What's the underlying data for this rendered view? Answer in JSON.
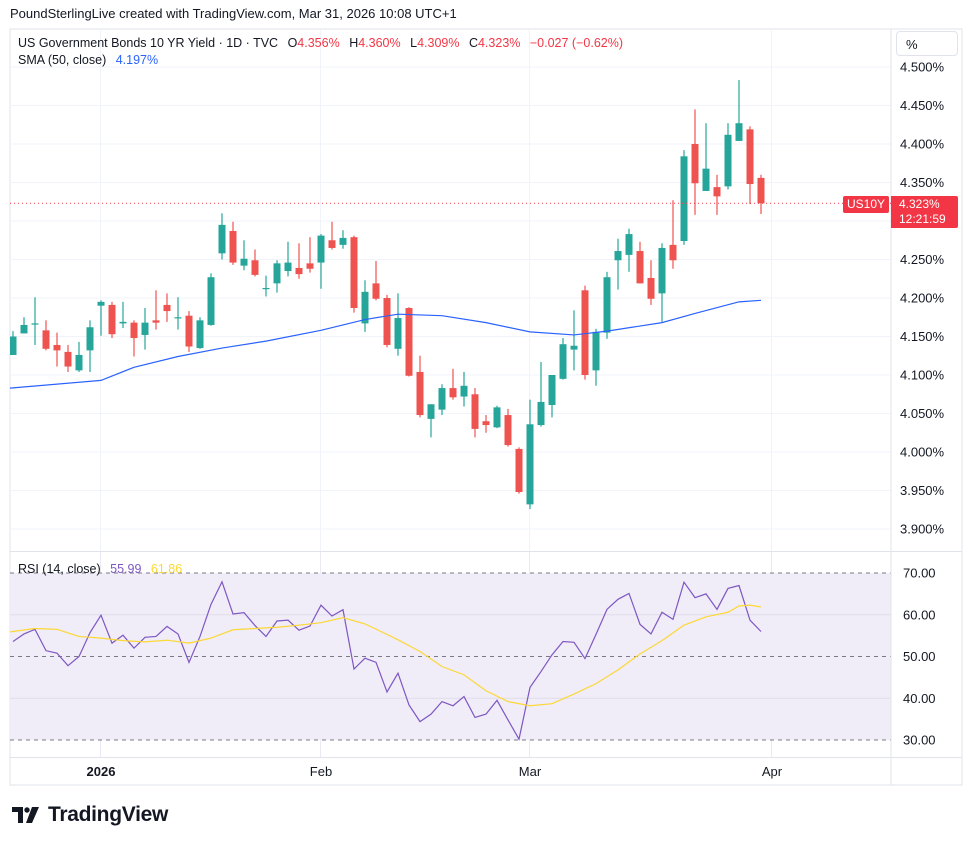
{
  "caption": "PoundSterlingLive created with TradingView.com, Mar 31, 2026 10:08 UTC+1",
  "legend": {
    "symbol_title": "US Government Bonds 10 YR Yield · 1D · TVC",
    "open_label": "O",
    "open": "4.356%",
    "high_label": "H",
    "high": "4.360%",
    "low_label": "L",
    "low": "4.309%",
    "close_label": "C",
    "close": "4.323%",
    "change": "−0.027 (−0.62%)",
    "sma_title": "SMA (50, close)",
    "sma_value": "4.197%",
    "rsi_title": "RSI (14, close)",
    "rsi_value": "55.99",
    "rsi_ma_value": "61.86"
  },
  "scale_button": "%",
  "last_price": {
    "symbol": "US10Y",
    "price": "4.323%",
    "countdown": "12:21:59"
  },
  "logo_text": "TradingView",
  "colors": {
    "up": "#26a69a",
    "down": "#ef5350",
    "sma": "#2962ff",
    "rsi": "#7e57c2",
    "rsi_ma": "#fdd835",
    "rsi_band": "#f0ecf8",
    "last_price": "#f23645"
  },
  "icons": {
    "logo": "tradingview-logo-icon"
  },
  "chart_data": [
    {
      "type": "candlestick",
      "title": "US Government Bonds 10 YR Yield · 1D · TVC",
      "ylim": [
        3.875,
        4.52
      ],
      "y_ticks": [
        "4.500%",
        "4.450%",
        "4.400%",
        "4.350%",
        "4.300%",
        "4.250%",
        "4.200%",
        "4.150%",
        "4.100%",
        "4.050%",
        "4.000%",
        "3.950%",
        "3.900%"
      ],
      "y_tick_values": [
        4.5,
        4.45,
        4.4,
        4.35,
        4.3,
        4.25,
        4.2,
        4.15,
        4.1,
        4.05,
        4.0,
        3.95,
        3.9
      ],
      "hidden_y_tick": 4.3,
      "x_ticks": [
        {
          "label": "2026",
          "index": 8
        },
        {
          "label": "Feb",
          "index": 28
        },
        {
          "label": "Mar",
          "index": 47
        },
        {
          "label": "Apr",
          "index": 69
        }
      ],
      "grid": true,
      "ohlc_columns": [
        "open",
        "high",
        "low",
        "close"
      ],
      "candles": [
        [
          4.126,
          4.157,
          4.126,
          4.15
        ],
        [
          4.154,
          4.175,
          4.154,
          4.165
        ],
        [
          4.166,
          4.201,
          4.139,
          4.167
        ],
        [
          4.158,
          4.171,
          4.132,
          4.134
        ],
        [
          4.139,
          4.155,
          4.111,
          4.132
        ],
        [
          4.13,
          4.139,
          4.104,
          4.111
        ],
        [
          4.106,
          4.143,
          4.104,
          4.126
        ],
        [
          4.132,
          4.171,
          4.104,
          4.162
        ],
        [
          4.19,
          4.197,
          4.151,
          4.195
        ],
        [
          4.191,
          4.195,
          4.148,
          4.153
        ],
        [
          4.167,
          4.195,
          4.161,
          4.169
        ],
        [
          4.168,
          4.171,
          4.124,
          4.148
        ],
        [
          4.152,
          4.187,
          4.133,
          4.168
        ],
        [
          4.171,
          4.21,
          4.159,
          4.168
        ],
        [
          4.191,
          4.206,
          4.169,
          4.183
        ],
        [
          4.174,
          4.201,
          4.159,
          4.175
        ],
        [
          4.177,
          4.183,
          4.13,
          4.137
        ],
        [
          4.135,
          4.175,
          4.134,
          4.171
        ],
        [
          4.165,
          4.232,
          4.164,
          4.227
        ],
        [
          4.258,
          4.31,
          4.25,
          4.295
        ],
        [
          4.287,
          4.299,
          4.243,
          4.246
        ],
        [
          4.242,
          4.275,
          4.236,
          4.251
        ],
        [
          4.249,
          4.263,
          4.228,
          4.23
        ],
        [
          4.212,
          4.229,
          4.202,
          4.213
        ],
        [
          4.219,
          4.249,
          4.207,
          4.245
        ],
        [
          4.235,
          4.273,
          4.228,
          4.246
        ],
        [
          4.239,
          4.271,
          4.225,
          4.231
        ],
        [
          4.245,
          4.279,
          4.233,
          4.238
        ],
        [
          4.246,
          4.283,
          4.212,
          4.281
        ],
        [
          4.275,
          4.299,
          4.263,
          4.265
        ],
        [
          4.269,
          4.288,
          4.264,
          4.278
        ],
        [
          4.279,
          4.281,
          4.181,
          4.187
        ],
        [
          4.167,
          4.223,
          4.156,
          4.208
        ],
        [
          4.219,
          4.248,
          4.197,
          4.199
        ],
        [
          4.2,
          4.204,
          4.136,
          4.139
        ],
        [
          4.134,
          4.206,
          4.125,
          4.174
        ],
        [
          4.187,
          4.188,
          4.098,
          4.099
        ],
        [
          4.104,
          4.125,
          4.045,
          4.048
        ],
        [
          4.043,
          4.062,
          4.019,
          4.062
        ],
        [
          4.055,
          4.088,
          4.048,
          4.083
        ],
        [
          4.083,
          4.108,
          4.068,
          4.071
        ],
        [
          4.072,
          4.104,
          4.059,
          4.086
        ],
        [
          4.075,
          4.083,
          4.019,
          4.03
        ],
        [
          4.04,
          4.048,
          4.025,
          4.035
        ],
        [
          4.032,
          4.06,
          4.031,
          4.058
        ],
        [
          4.048,
          4.056,
          4.007,
          4.009
        ],
        [
          4.004,
          4.006,
          3.946,
          3.948
        ],
        [
          3.932,
          4.068,
          3.926,
          4.036
        ],
        [
          4.035,
          4.117,
          4.033,
          4.065
        ],
        [
          4.061,
          4.1,
          4.045,
          4.1
        ],
        [
          4.095,
          4.148,
          4.094,
          4.14
        ],
        [
          4.133,
          4.184,
          4.106,
          4.138
        ],
        [
          4.21,
          4.216,
          4.094,
          4.1
        ],
        [
          4.106,
          4.16,
          4.086,
          4.156
        ],
        [
          4.155,
          4.234,
          4.147,
          4.227
        ],
        [
          4.249,
          4.277,
          4.211,
          4.261
        ],
        [
          4.256,
          4.29,
          4.234,
          4.283
        ],
        [
          4.261,
          4.273,
          4.219,
          4.219
        ],
        [
          4.226,
          4.249,
          4.191,
          4.199
        ],
        [
          4.206,
          4.271,
          4.169,
          4.265
        ],
        [
          4.269,
          4.327,
          4.238,
          4.249
        ],
        [
          4.274,
          4.392,
          4.269,
          4.384
        ],
        [
          4.4,
          4.445,
          4.308,
          4.349
        ],
        [
          4.339,
          4.427,
          4.339,
          4.368
        ],
        [
          4.344,
          4.36,
          4.308,
          4.332
        ],
        [
          4.345,
          4.427,
          4.341,
          4.412
        ],
        [
          4.404,
          4.483,
          4.404,
          4.427
        ],
        [
          4.419,
          4.423,
          4.322,
          4.348
        ],
        [
          4.356,
          4.36,
          4.309,
          4.323
        ]
      ],
      "sma_50": [
        [
          0,
          4.083
        ],
        [
          8,
          4.093
        ],
        [
          11,
          4.11
        ],
        [
          15,
          4.124
        ],
        [
          19,
          4.135
        ],
        [
          23,
          4.144
        ],
        [
          28,
          4.158
        ],
        [
          32,
          4.172
        ],
        [
          35,
          4.179
        ],
        [
          39,
          4.177
        ],
        [
          43,
          4.168
        ],
        [
          47,
          4.156
        ],
        [
          51,
          4.152
        ],
        [
          54,
          4.157
        ],
        [
          59,
          4.168
        ],
        [
          62,
          4.18
        ],
        [
          66,
          4.195
        ],
        [
          68,
          4.197
        ]
      ],
      "last_price": 4.323
    },
    {
      "type": "line",
      "title": "RSI (14, close)",
      "ylim": [
        27,
        74
      ],
      "y_ticks": [
        "70.00",
        "60.00",
        "50.00",
        "40.00",
        "30.00"
      ],
      "y_tick_values": [
        70,
        60,
        50,
        40,
        30
      ],
      "band": [
        30,
        70
      ],
      "dashed_levels": [
        70,
        50,
        30
      ],
      "series": [
        {
          "values": [
            53.6,
            55.4,
            56.5,
            51.4,
            50.8,
            47.8,
            50.0,
            55.7,
            59.9,
            53.2,
            55.1,
            52.0,
            54.6,
            54.8,
            57.2,
            55.4,
            48.6,
            54.8,
            62.5,
            67.9,
            60.2,
            60.5,
            57.4,
            54.8,
            58.5,
            58.7,
            56.3,
            57.3,
            62.3,
            59.7,
            61.2,
            47.0,
            49.6,
            48.6,
            41.5,
            46.0,
            38.4,
            34.4,
            36.2,
            39.2,
            38.2,
            40.4,
            35.4,
            36.2,
            39.5,
            34.8,
            30.2,
            42.6,
            46.4,
            50.4,
            53.6,
            53.4,
            49.5,
            55.3,
            61.3,
            63.7,
            65.1,
            57.7,
            55.4,
            60.6,
            58.9,
            67.8,
            64.1,
            65.0,
            61.3,
            66.3,
            67.0,
            58.7,
            55.99
          ]
        },
        {
          "points": [
            [
              0,
              55.9
            ],
            [
              2,
              56.7
            ],
            [
              4,
              56.5
            ],
            [
              6,
              54.8
            ],
            [
              8,
              54.4
            ],
            [
              10,
              53.8
            ],
            [
              12,
              53.5
            ],
            [
              14,
              53.9
            ],
            [
              16,
              53.2
            ],
            [
              18,
              54.4
            ],
            [
              20,
              56.4
            ],
            [
              22,
              56.7
            ],
            [
              24,
              57.0
            ],
            [
              26,
              57.5
            ],
            [
              28,
              58.1
            ],
            [
              30,
              59.3
            ],
            [
              32,
              57.8
            ],
            [
              34,
              55.3
            ],
            [
              35,
              54.0
            ],
            [
              37,
              51.2
            ],
            [
              39,
              47.6
            ],
            [
              41,
              45.6
            ],
            [
              43,
              41.8
            ],
            [
              45,
              39.2
            ],
            [
              47,
              38.2
            ],
            [
              49,
              38.7
            ],
            [
              51,
              41.0
            ],
            [
              53,
              43.5
            ],
            [
              55,
              46.8
            ],
            [
              57,
              50.6
            ],
            [
              59,
              53.8
            ],
            [
              61,
              57.5
            ],
            [
              63,
              59.5
            ],
            [
              65,
              60.6
            ],
            [
              66,
              62.1
            ],
            [
              67,
              62.3
            ],
            [
              68,
              61.86
            ]
          ]
        }
      ]
    }
  ]
}
